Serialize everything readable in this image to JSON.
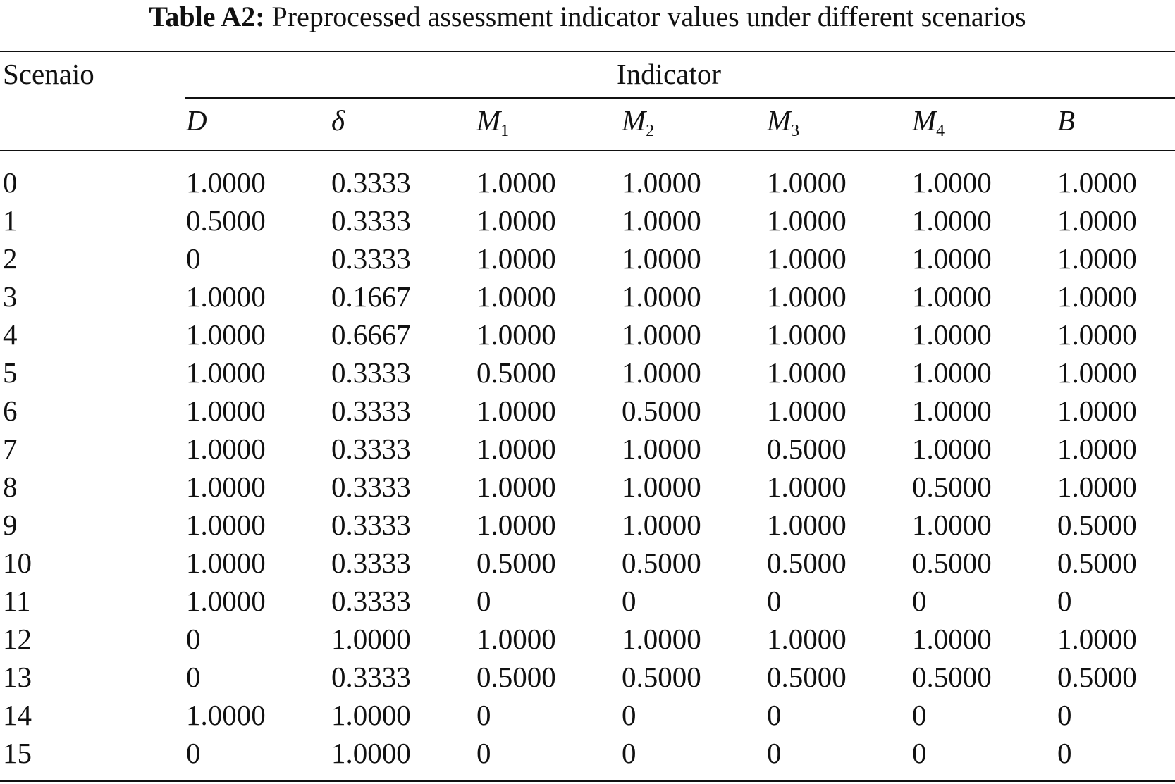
{
  "caption": {
    "label": "Table A2:",
    "text": "Preprocessed assessment indicator values under different scenarios"
  },
  "table": {
    "row_header": "Scenaio",
    "group_header": "Indicator",
    "columns": [
      {
        "symbol": "D",
        "sub": ""
      },
      {
        "symbol": "δ",
        "sub": ""
      },
      {
        "symbol": "M",
        "sub": "1"
      },
      {
        "symbol": "M",
        "sub": "2"
      },
      {
        "symbol": "M",
        "sub": "3"
      },
      {
        "symbol": "M",
        "sub": "4"
      },
      {
        "symbol": "B",
        "sub": ""
      }
    ],
    "rows": [
      {
        "scenario": "0",
        "values": [
          "1.0000",
          "0.3333",
          "1.0000",
          "1.0000",
          "1.0000",
          "1.0000",
          "1.0000"
        ]
      },
      {
        "scenario": "1",
        "values": [
          "0.5000",
          "0.3333",
          "1.0000",
          "1.0000",
          "1.0000",
          "1.0000",
          "1.0000"
        ]
      },
      {
        "scenario": "2",
        "values": [
          "0",
          "0.3333",
          "1.0000",
          "1.0000",
          "1.0000",
          "1.0000",
          "1.0000"
        ]
      },
      {
        "scenario": "3",
        "values": [
          "1.0000",
          "0.1667",
          "1.0000",
          "1.0000",
          "1.0000",
          "1.0000",
          "1.0000"
        ]
      },
      {
        "scenario": "4",
        "values": [
          "1.0000",
          "0.6667",
          "1.0000",
          "1.0000",
          "1.0000",
          "1.0000",
          "1.0000"
        ]
      },
      {
        "scenario": "5",
        "values": [
          "1.0000",
          "0.3333",
          "0.5000",
          "1.0000",
          "1.0000",
          "1.0000",
          "1.0000"
        ]
      },
      {
        "scenario": "6",
        "values": [
          "1.0000",
          "0.3333",
          "1.0000",
          "0.5000",
          "1.0000",
          "1.0000",
          "1.0000"
        ]
      },
      {
        "scenario": "7",
        "values": [
          "1.0000",
          "0.3333",
          "1.0000",
          "1.0000",
          "0.5000",
          "1.0000",
          "1.0000"
        ]
      },
      {
        "scenario": "8",
        "values": [
          "1.0000",
          "0.3333",
          "1.0000",
          "1.0000",
          "1.0000",
          "0.5000",
          "1.0000"
        ]
      },
      {
        "scenario": "9",
        "values": [
          "1.0000",
          "0.3333",
          "1.0000",
          "1.0000",
          "1.0000",
          "1.0000",
          "0.5000"
        ]
      },
      {
        "scenario": "10",
        "values": [
          "1.0000",
          "0.3333",
          "0.5000",
          "0.5000",
          "0.5000",
          "0.5000",
          "0.5000"
        ]
      },
      {
        "scenario": "11",
        "values": [
          "1.0000",
          "0.3333",
          "0",
          "0",
          "0",
          "0",
          "0"
        ]
      },
      {
        "scenario": "12",
        "values": [
          "0",
          "1.0000",
          "1.0000",
          "1.0000",
          "1.0000",
          "1.0000",
          "1.0000"
        ]
      },
      {
        "scenario": "13",
        "values": [
          "0",
          "0.3333",
          "0.5000",
          "0.5000",
          "0.5000",
          "0.5000",
          "0.5000"
        ]
      },
      {
        "scenario": "14",
        "values": [
          "1.0000",
          "1.0000",
          "0",
          "0",
          "0",
          "0",
          "0"
        ]
      },
      {
        "scenario": "15",
        "values": [
          "0",
          "1.0000",
          "0",
          "0",
          "0",
          "0",
          "0"
        ]
      }
    ]
  }
}
